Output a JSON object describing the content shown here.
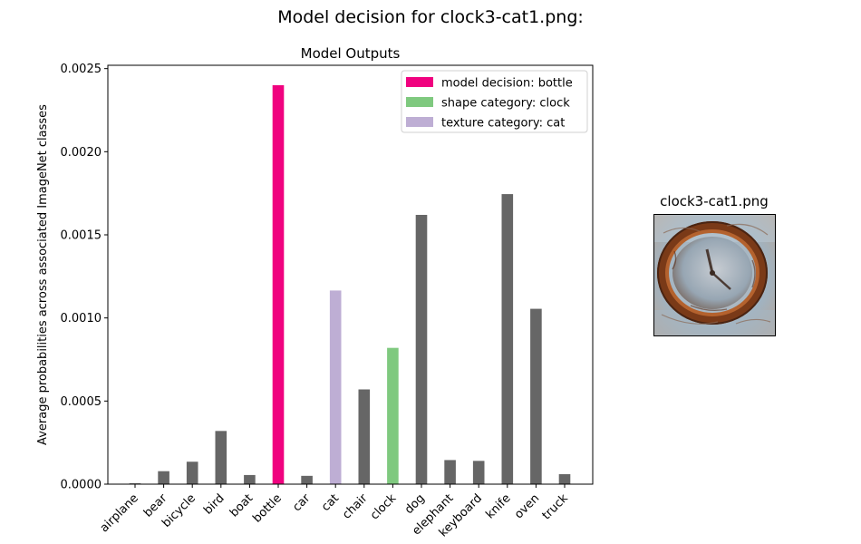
{
  "figure": {
    "suptitle": "Model decision for clock3-cat1.png:",
    "image_title": "clock3-cat1.png"
  },
  "chart_data": {
    "type": "bar",
    "title": "Model Outputs",
    "xlabel": "",
    "ylabel": "Average probabilities across associated ImageNet classes",
    "categories": [
      "airplane",
      "bear",
      "bicycle",
      "bird",
      "boat",
      "bottle",
      "car",
      "cat",
      "chair",
      "clock",
      "dog",
      "elephant",
      "keyboard",
      "knife",
      "oven",
      "truck"
    ],
    "values": [
      5e-06,
      7.8e-05,
      0.000135,
      0.00032,
      5.5e-05,
      0.0024,
      5e-05,
      0.001165,
      0.00057,
      0.00082,
      0.00162,
      0.000145,
      0.00014,
      0.001745,
      0.001055,
      6e-05
    ],
    "bar_colors": [
      "#666666",
      "#666666",
      "#666666",
      "#666666",
      "#666666",
      "#f0027f",
      "#666666",
      "#beaed4",
      "#666666",
      "#7fc97f",
      "#666666",
      "#666666",
      "#666666",
      "#666666",
      "#666666",
      "#666666"
    ],
    "ylim": [
      0,
      0.00252
    ],
    "yticks": [
      0.0,
      0.0005,
      0.001,
      0.0015,
      0.002,
      0.0025
    ],
    "ytick_labels": [
      "0.0000",
      "0.0005",
      "0.0010",
      "0.0015",
      "0.0020",
      "0.0025"
    ],
    "legend_position": "top-right",
    "legend": [
      {
        "label": "model decision: bottle",
        "color": "#f0027f"
      },
      {
        "label": "shape category: clock",
        "color": "#7fc97f"
      },
      {
        "label": "texture category: cat",
        "color": "#beaed4"
      }
    ]
  }
}
